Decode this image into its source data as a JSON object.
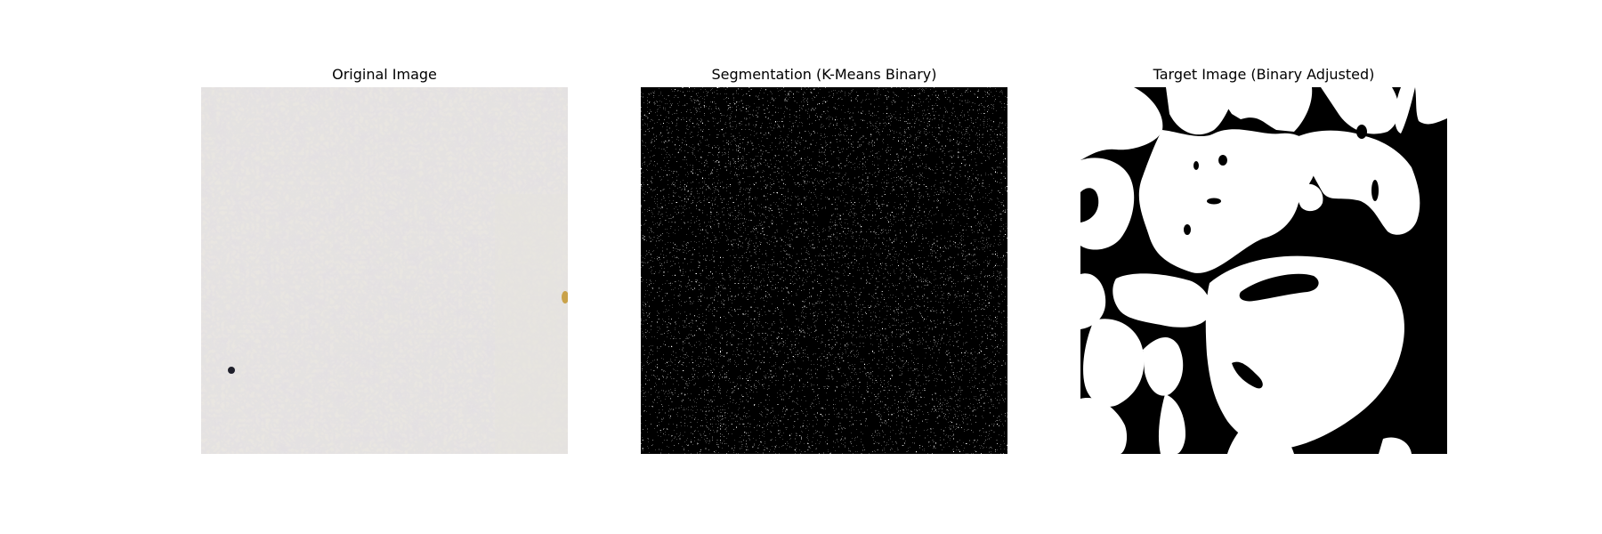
{
  "figure": {
    "panels": [
      {
        "title": "Original Image",
        "kind": "tissue-photo"
      },
      {
        "title": "Segmentation (K-Means Binary)",
        "kind": "binary-noise"
      },
      {
        "title": "Target Image (Binary Adjusted)",
        "kind": "binary-mask"
      }
    ]
  },
  "colors": {
    "background": "#ffffff",
    "tissue_base": "#e9e6e1",
    "tissue_stain": "#c9c3c4",
    "mask_fg": "#ffffff",
    "mask_bg": "#000000"
  }
}
